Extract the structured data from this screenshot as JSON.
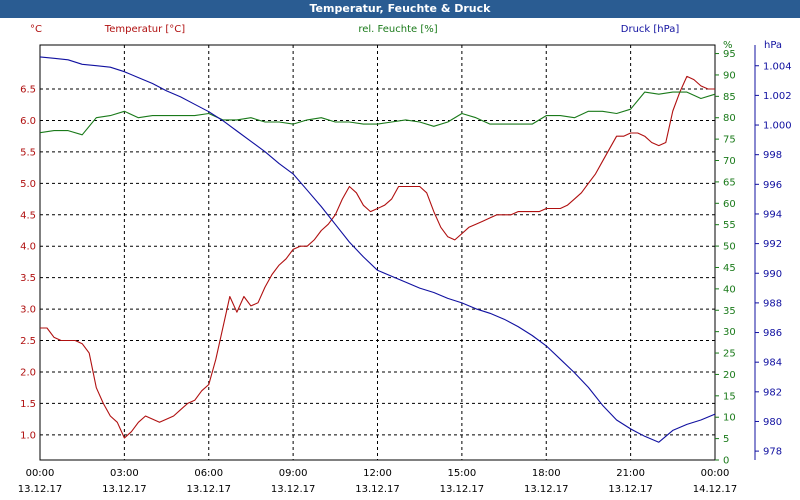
{
  "window": {
    "title": "Temperatur, Feuchte & Druck"
  },
  "chart_data": {
    "type": "line",
    "title": "Temperatur, Feuchte & Druck",
    "x_tick_times": [
      "00:00",
      "03:00",
      "06:00",
      "09:00",
      "12:00",
      "15:00",
      "18:00",
      "21:00",
      "00:00"
    ],
    "x_tick_dates": [
      "13.12.17",
      "13.12.17",
      "13.12.17",
      "13.12.17",
      "13.12.17",
      "13.12.17",
      "13.12.17",
      "13.12.17",
      "14.12.17"
    ],
    "xlim_hours": [
      0,
      24
    ],
    "grid": true,
    "axes": {
      "temperature": {
        "label": "Temperatur [°C]",
        "unit": "°C",
        "side": "left",
        "range": [
          0.6,
          7.2
        ],
        "ticks": [
          "1.0",
          "1.5",
          "2.0",
          "2.5",
          "3.0",
          "3.5",
          "4.0",
          "4.5",
          "5.0",
          "5.5",
          "6.0",
          "6.5"
        ],
        "color": "#b01010"
      },
      "humidity": {
        "label": "rel. Feuchte [%]",
        "unit": "%",
        "side": "right",
        "range": [
          0,
          97
        ],
        "ticks": [
          "0",
          "5",
          "10",
          "15",
          "20",
          "25",
          "30",
          "35",
          "40",
          "45",
          "50",
          "55",
          "60",
          "65",
          "70",
          "75",
          "80",
          "85",
          "90",
          "95"
        ],
        "color": "#1a7a1a"
      },
      "pressure": {
        "label": "Druck [hPa]",
        "unit": "hPa",
        "side": "right-outer",
        "range": [
          977.4,
          1005.4
        ],
        "ticks": [
          "978",
          "980",
          "982",
          "984",
          "986",
          "988",
          "990",
          "992",
          "994",
          "996",
          "998",
          "1.000",
          "1.002",
          "1.004"
        ],
        "color": "#1010a0"
      }
    },
    "series": [
      {
        "name": "Temperatur [°C]",
        "axis": "temperature",
        "color": "#b01010",
        "x": [
          0,
          0.25,
          0.5,
          0.75,
          1.0,
          1.25,
          1.5,
          1.75,
          2.0,
          2.25,
          2.5,
          2.75,
          3.0,
          3.25,
          3.5,
          3.75,
          4.0,
          4.25,
          4.5,
          4.75,
          5.0,
          5.25,
          5.5,
          5.75,
          6.0,
          6.25,
          6.5,
          6.75,
          7.0,
          7.25,
          7.5,
          7.75,
          8.0,
          8.25,
          8.5,
          8.75,
          9.0,
          9.25,
          9.5,
          9.75,
          10.0,
          10.25,
          10.5,
          10.75,
          11.0,
          11.25,
          11.5,
          11.75,
          12.0,
          12.25,
          12.5,
          12.75,
          13.0,
          13.25,
          13.5,
          13.75,
          14.0,
          14.25,
          14.5,
          14.75,
          15.0,
          15.25,
          15.5,
          15.75,
          16.0,
          16.25,
          16.5,
          16.75,
          17.0,
          17.25,
          17.5,
          17.75,
          18.0,
          18.25,
          18.5,
          18.75,
          19.0,
          19.25,
          19.5,
          19.75,
          20.0,
          20.25,
          20.5,
          20.75,
          21.0,
          21.25,
          21.5,
          21.75,
          22.0,
          22.25,
          22.5,
          22.75,
          23.0,
          23.25,
          23.5,
          23.75,
          24.0
        ],
        "values": [
          2.7,
          2.7,
          2.55,
          2.5,
          2.5,
          2.5,
          2.45,
          2.3,
          1.75,
          1.5,
          1.3,
          1.2,
          0.95,
          1.05,
          1.2,
          1.3,
          1.25,
          1.2,
          1.25,
          1.3,
          1.4,
          1.5,
          1.55,
          1.7,
          1.8,
          2.2,
          2.7,
          3.2,
          2.95,
          3.2,
          3.05,
          3.1,
          3.35,
          3.55,
          3.7,
          3.8,
          3.95,
          4.0,
          4.0,
          4.1,
          4.25,
          4.35,
          4.5,
          4.75,
          4.95,
          4.85,
          4.65,
          4.55,
          4.6,
          4.65,
          4.75,
          4.95,
          4.95,
          4.95,
          4.95,
          4.85,
          4.55,
          4.3,
          4.15,
          4.1,
          4.2,
          4.3,
          4.35,
          4.4,
          4.45,
          4.5,
          4.5,
          4.5,
          4.55,
          4.55,
          4.55,
          4.55,
          4.6,
          4.6,
          4.6,
          4.65,
          4.75,
          4.85,
          5.0,
          5.15,
          5.35,
          5.55,
          5.75,
          5.75,
          5.8,
          5.8,
          5.75,
          5.65,
          5.6,
          5.65,
          6.15,
          6.45,
          6.7,
          6.65,
          6.55,
          6.5,
          6.5
        ]
      },
      {
        "name": "rel. Feuchte [%]",
        "axis": "humidity",
        "color": "#1a7a1a",
        "x": [
          0,
          0.5,
          1.0,
          1.5,
          2.0,
          2.5,
          3.0,
          3.5,
          4.0,
          4.5,
          5.0,
          5.5,
          6.0,
          6.5,
          7.0,
          7.5,
          8.0,
          8.5,
          9.0,
          9.5,
          10.0,
          10.5,
          11.0,
          11.5,
          12.0,
          12.5,
          13.0,
          13.5,
          14.0,
          14.5,
          15.0,
          15.5,
          16.0,
          16.5,
          17.0,
          17.5,
          18.0,
          18.5,
          19.0,
          19.5,
          20.0,
          20.5,
          21.0,
          21.5,
          22.0,
          22.5,
          23.0,
          23.5,
          24.0
        ],
        "values": [
          76.5,
          77,
          77,
          76,
          80,
          80.5,
          81.5,
          80,
          80.5,
          80.5,
          80.5,
          80.5,
          81,
          79.5,
          79.5,
          80,
          79,
          79,
          78.5,
          79.5,
          80,
          79,
          79,
          78.5,
          78.5,
          79,
          79.5,
          79,
          78,
          79,
          81,
          80,
          78.5,
          78.5,
          78.5,
          78.5,
          80.5,
          80.5,
          80,
          81.5,
          81.5,
          81,
          82,
          86,
          85.5,
          86,
          86,
          84.5,
          85.5
        ]
      },
      {
        "name": "Druck [hPa]",
        "axis": "pressure",
        "color": "#1010a0",
        "x": [
          0,
          0.5,
          1.0,
          1.5,
          2.0,
          2.5,
          3.0,
          3.5,
          4.0,
          4.5,
          5.0,
          5.5,
          6.0,
          6.5,
          7.0,
          7.5,
          8.0,
          8.5,
          9.0,
          9.5,
          10.0,
          10.5,
          11.0,
          11.5,
          12.0,
          12.5,
          13.0,
          13.5,
          14.0,
          14.5,
          15.0,
          15.5,
          16.0,
          16.5,
          17.0,
          17.5,
          18.0,
          18.5,
          19.0,
          19.5,
          20.0,
          20.5,
          21.0,
          21.5,
          22.0,
          22.5,
          23.0,
          23.5,
          24.0
        ],
        "values": [
          1004.6,
          1004.5,
          1004.4,
          1004.1,
          1004.0,
          1003.9,
          1003.6,
          1003.2,
          1002.8,
          1002.3,
          1001.9,
          1001.4,
          1000.9,
          1000.3,
          999.6,
          998.9,
          998.2,
          997.4,
          996.7,
          995.6,
          994.5,
          993.3,
          992.1,
          991.1,
          990.2,
          989.8,
          989.4,
          989.0,
          988.7,
          988.3,
          988.0,
          987.6,
          987.3,
          986.9,
          986.4,
          985.8,
          985.1,
          984.2,
          983.3,
          982.3,
          981.1,
          980.1,
          979.5,
          979.0,
          978.6,
          979.4,
          979.8,
          980.1,
          980.5
        ]
      }
    ]
  }
}
